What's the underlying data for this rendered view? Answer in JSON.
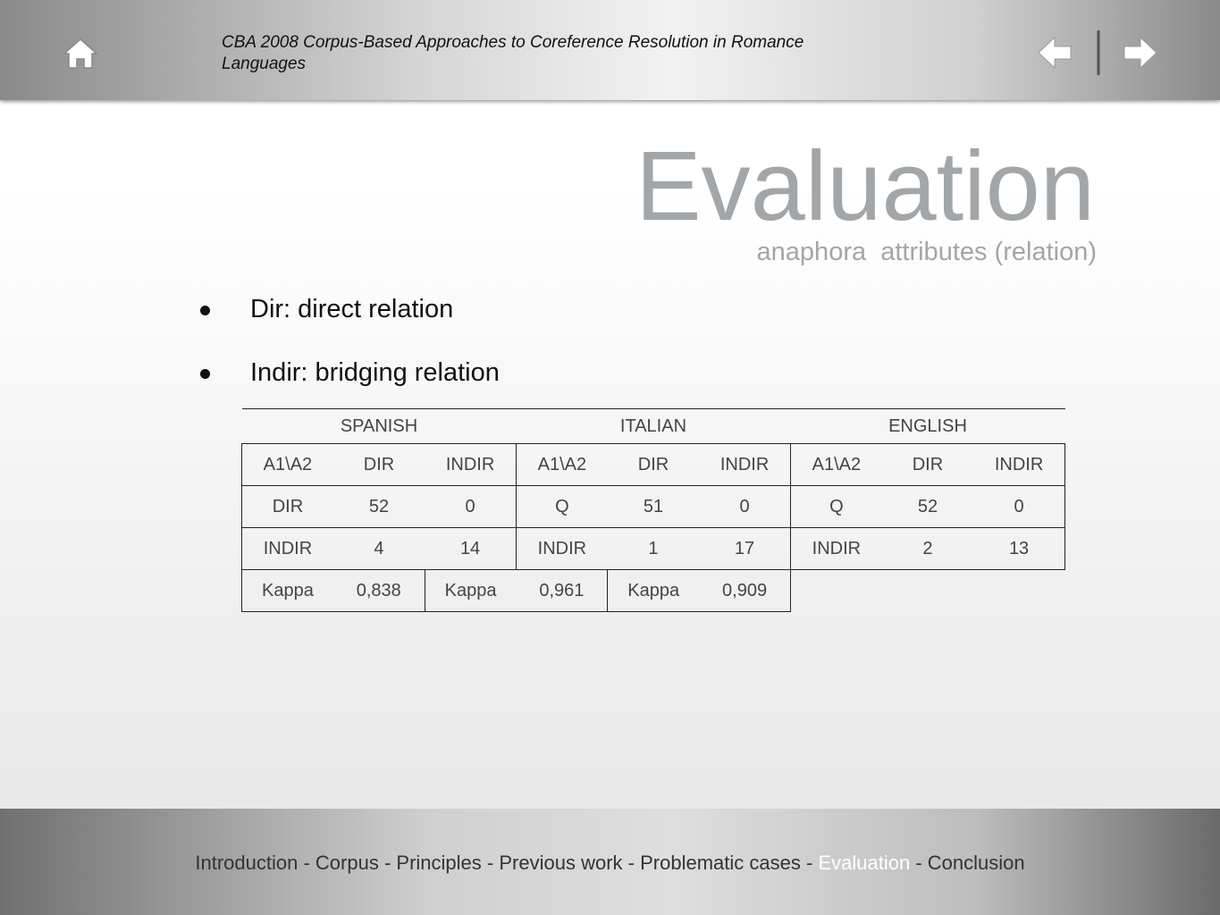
{
  "header": {
    "title": "CBA 2008 Corpus-Based Approaches to Coreference Resolution in Romance Languages"
  },
  "slide": {
    "title": "Evaluation",
    "subtitle": "anaphora  attributes (relation)",
    "bullets": [
      "Dir: direct relation",
      "Indir: bridging relation"
    ]
  },
  "table": {
    "groups": [
      "SPANISH",
      "ITALIAN",
      "ENGLISH"
    ],
    "rows": [
      [
        "A1\\A2",
        "DIR",
        "INDIR",
        "A1\\A2",
        "DIR",
        "INDIR",
        "A1\\A2",
        "DIR",
        "INDIR"
      ],
      [
        "DIR",
        "52",
        "0",
        "Q",
        "51",
        "0",
        "Q",
        "52",
        "0"
      ],
      [
        "INDIR",
        "4",
        "14",
        "INDIR",
        "1",
        "17",
        "INDIR",
        "2",
        "13"
      ],
      [
        "Kappa",
        "0,838",
        "Kappa",
        "0,961",
        "Kappa",
        "0,909"
      ]
    ]
  },
  "footer": {
    "separator": "-",
    "nav": [
      "Introduction",
      "Corpus",
      "Principles",
      "Previous work",
      "Problematic cases",
      "Evaluation",
      "Conclusion"
    ]
  }
}
